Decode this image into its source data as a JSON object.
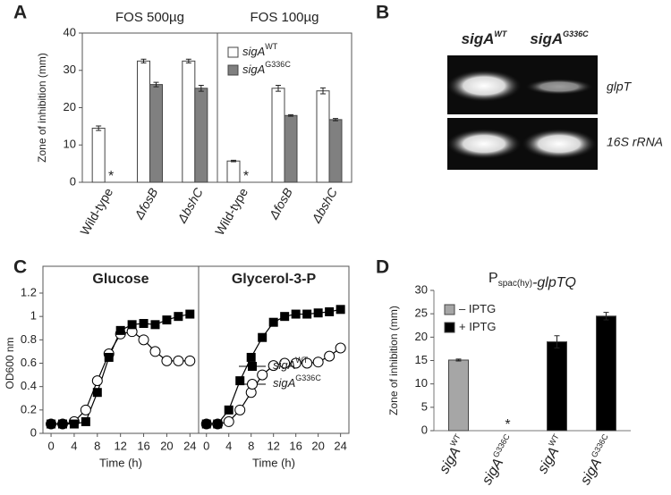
{
  "chart_data": [
    {
      "type": "bar",
      "panel": "A",
      "title": "FOS  500µg",
      "ylabel": "Zone of inhibition (mm)",
      "categories": [
        "Wild-type",
        "ΔfosB",
        "ΔbshC"
      ],
      "ylim": [
        0,
        40
      ],
      "yticks": [
        0,
        10,
        20,
        30,
        40
      ],
      "series": [
        {
          "color": "#ffffff",
          "values": [
            14.5,
            32.5,
            32.5
          ],
          "errors": [
            0.6,
            0.5,
            0.5
          ]
        },
        {
          "color": "#808080",
          "values": [
            null,
            26.2,
            25.2
          ],
          "errors": [
            null,
            0.6,
            0.8
          ],
          "value_labels": [
            "*",
            null,
            null
          ]
        }
      ]
    },
    {
      "type": "bar",
      "title": "FOS 100µg",
      "categories": [
        "Wild-type",
        "ΔfosB",
        "ΔbshC"
      ],
      "ylim": [
        0,
        40
      ],
      "legend": "upper left",
      "series": [
        {
          "name": "sigA",
          "name_sup": "WT",
          "color": "#ffffff",
          "values": [
            5.7,
            25.2,
            24.5
          ],
          "errors": [
            0.2,
            0.8,
            0.8
          ]
        },
        {
          "name": "sigA",
          "name_sup": "G336C",
          "color": "#808080",
          "values": [
            null,
            17.9,
            16.8
          ],
          "errors": [
            null,
            0.2,
            0.3
          ],
          "value_labels": [
            "*",
            null,
            null
          ]
        }
      ]
    },
    {
      "type": "line",
      "panel": "C",
      "title": "Glucose",
      "xlabel": "Time (h)",
      "ylabel": "OD600  nm",
      "x": [
        0,
        2,
        4,
        6,
        8,
        10,
        12,
        14,
        16,
        18,
        20,
        22,
        24
      ],
      "xlim": [
        -1.4,
        25.5
      ],
      "xticks": [
        0,
        4,
        8,
        12,
        16,
        20,
        24
      ],
      "ylim": [
        0,
        1.2
      ],
      "yticks": [
        0,
        0.2,
        0.4,
        0.6,
        0.8,
        1,
        1.2
      ],
      "series": [
        {
          "color": "#000000",
          "marker": "square",
          "fill": "#000000",
          "values": [
            0.08,
            0.08,
            0.08,
            0.1,
            0.35,
            0.65,
            0.88,
            0.93,
            0.94,
            0.93,
            0.97,
            1.0,
            1.02
          ]
        },
        {
          "color": "#000000",
          "marker": "circle",
          "fill": "#ffffff",
          "values": [
            0.08,
            0.08,
            0.1,
            0.2,
            0.45,
            0.68,
            0.85,
            0.87,
            0.8,
            0.7,
            0.62,
            0.62,
            0.62
          ]
        }
      ]
    },
    {
      "type": "line",
      "title": "Glycerol-3-P",
      "xlabel": "Time (h)",
      "x": [
        0,
        2,
        4,
        6,
        8,
        10,
        12,
        14,
        16,
        18,
        20,
        22,
        24
      ],
      "xlim": [
        -1.4,
        25.5
      ],
      "xticks": [
        0,
        4,
        8,
        12,
        16,
        20,
        24
      ],
      "ylim": [
        0,
        1.2
      ],
      "legend": "lower right",
      "series": [
        {
          "name": "sigA",
          "name_sup": "WT",
          "color": "#000000",
          "marker": "square",
          "fill": "#000000",
          "values": [
            0.08,
            0.08,
            0.2,
            0.45,
            0.65,
            0.82,
            0.95,
            1.0,
            1.02,
            1.02,
            1.03,
            1.04,
            1.06
          ]
        },
        {
          "name": "sigA",
          "name_sup": "G336C",
          "color": "#000000",
          "marker": "circle",
          "fill": "#ffffff",
          "values": [
            0.08,
            0.08,
            0.1,
            0.2,
            0.35,
            0.5,
            0.58,
            0.6,
            0.6,
            0.6,
            0.61,
            0.66,
            0.73
          ]
        }
      ]
    },
    {
      "type": "bar",
      "panel": "D",
      "title": "P",
      "title_sub": "spac(hy)",
      "title_rest": "-glpTQ",
      "ylabel": "Zone of inhibition (mm)",
      "categories": [
        "sigA",
        "sigA",
        "sigA",
        "sigA"
      ],
      "category_sups": [
        "WT",
        "G336C",
        "WT",
        "G336C"
      ],
      "ylim": [
        0,
        30
      ],
      "yticks": [
        0,
        5,
        10,
        15,
        20,
        25,
        30
      ],
      "legend": "upper left",
      "series": [
        {
          "name": "– IPTG",
          "color": "#a6a6a6",
          "values": [
            15.1,
            null,
            null,
            null
          ],
          "errors": [
            0.2,
            null,
            null,
            null
          ],
          "value_labels": [
            null,
            "*",
            null,
            null
          ]
        },
        {
          "name": "+ IPTG",
          "color": "#000000",
          "values": [
            null,
            null,
            19,
            24.5
          ],
          "errors": [
            null,
            null,
            1.3,
            0.8
          ]
        }
      ]
    }
  ],
  "gel": {
    "panel": "B",
    "lanes": [
      {
        "name": "sigA",
        "sup": "WT"
      },
      {
        "name": "sigA",
        "sup": "G336C"
      }
    ],
    "rows": [
      "glpT",
      "16S rRNA"
    ]
  }
}
